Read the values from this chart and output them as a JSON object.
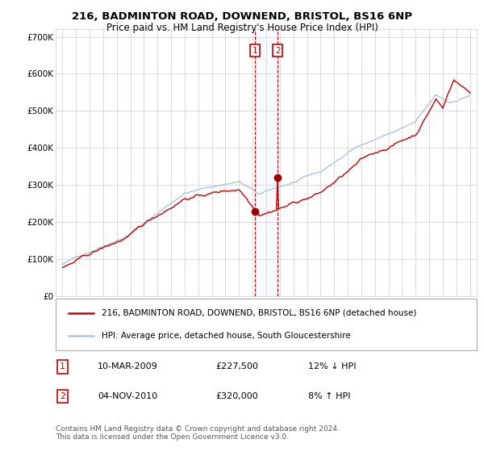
{
  "title": "216, BADMINTON ROAD, DOWNEND, BRISTOL, BS16 6NP",
  "subtitle": "Price paid vs. HM Land Registry's House Price Index (HPI)",
  "legend_line1": "216, BADMINTON ROAD, DOWNEND, BRISTOL, BS16 6NP (detached house)",
  "legend_line2": "HPI: Average price, detached house, South Gloucestershire",
  "footnote": "Contains HM Land Registry data © Crown copyright and database right 2024.\nThis data is licensed under the Open Government Licence v3.0.",
  "transaction1": {
    "label": "1",
    "date": "10-MAR-2009",
    "price": 227500,
    "pct": "12%",
    "dir": "↓",
    "x": 2009.19
  },
  "transaction2": {
    "label": "2",
    "date": "04-NOV-2010",
    "price": 320000,
    "pct": "8%",
    "dir": "↑",
    "x": 2010.84
  },
  "hpi_color": "#aac4e0",
  "price_color": "#cc0000",
  "marker_color": "#990000",
  "shading_color": "#ddeeff",
  "dashed_color": "#cc0000",
  "grid_color": "#cccccc",
  "bg_color": "#ffffff",
  "xlim": [
    1994.5,
    2025.5
  ],
  "ylim": [
    0,
    720000
  ],
  "yticks": [
    0,
    100000,
    200000,
    300000,
    400000,
    500000,
    600000,
    700000
  ],
  "ytick_labels": [
    "£0",
    "£100K",
    "£200K",
    "£300K",
    "£400K",
    "£500K",
    "£600K",
    "£700K"
  ],
  "xticks": [
    1995,
    1996,
    1997,
    1998,
    1999,
    2000,
    2001,
    2002,
    2003,
    2004,
    2005,
    2006,
    2007,
    2008,
    2009,
    2010,
    2011,
    2012,
    2013,
    2014,
    2015,
    2016,
    2017,
    2018,
    2019,
    2020,
    2021,
    2022,
    2023,
    2024,
    2025
  ]
}
